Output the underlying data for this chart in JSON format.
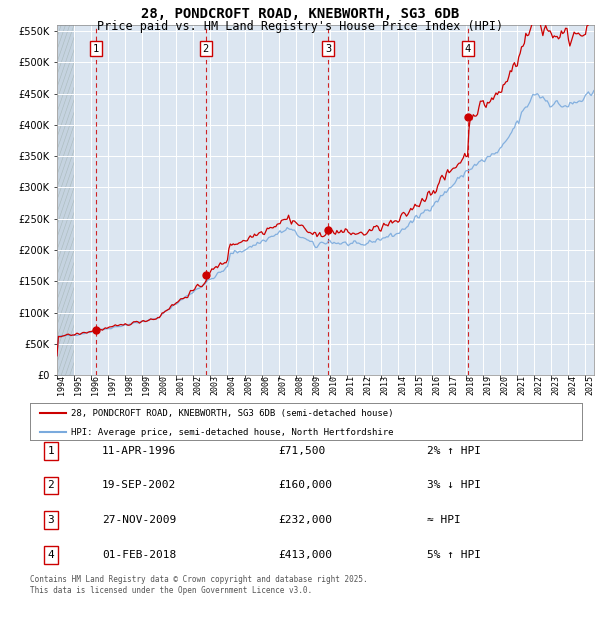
{
  "title": "28, PONDCROFT ROAD, KNEBWORTH, SG3 6DB",
  "subtitle": "Price paid vs. HM Land Registry's House Price Index (HPI)",
  "legend_line1": "28, PONDCROFT ROAD, KNEBWORTH, SG3 6DB (semi-detached house)",
  "legend_line2": "HPI: Average price, semi-detached house, North Hertfordshire",
  "footer": "Contains HM Land Registry data © Crown copyright and database right 2025.\nThis data is licensed under the Open Government Licence v3.0.",
  "sales": [
    {
      "num": 1,
      "date": "11-APR-1996",
      "year": 1996.28,
      "price": 71500,
      "rel": "2% ↑ HPI"
    },
    {
      "num": 2,
      "date": "19-SEP-2002",
      "year": 2002.72,
      "price": 160000,
      "rel": "3% ↓ HPI"
    },
    {
      "num": 3,
      "date": "27-NOV-2009",
      "year": 2009.91,
      "price": 232000,
      "rel": "≈ HPI"
    },
    {
      "num": 4,
      "date": "01-FEB-2018",
      "year": 2018.09,
      "price": 413000,
      "rel": "5% ↑ HPI"
    }
  ],
  "ylim": [
    0,
    560000
  ],
  "xlim_start": 1994.0,
  "xlim_end": 2025.5,
  "background_color": "#dce6f1",
  "red_line_color": "#cc0000",
  "blue_line_color": "#7aaadd",
  "marker_box_color": "#cc0000",
  "title_fontsize": 10,
  "subtitle_fontsize": 8.5
}
